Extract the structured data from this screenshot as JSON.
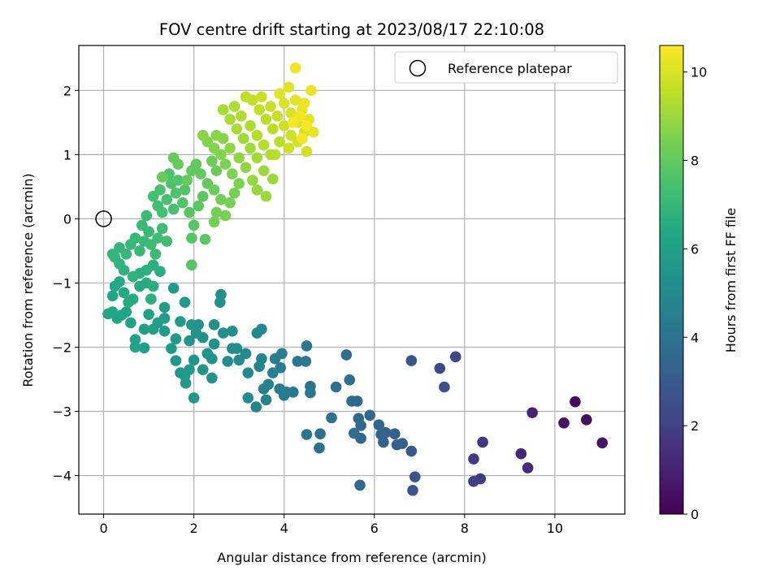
{
  "chart_data": {
    "type": "scatter",
    "title": "FOV centre drift starting at 2023/08/17 22:10:08",
    "xlabel": "Angular distance from reference (arcmin)",
    "ylabel": "Rotation from reference (arcmin)",
    "xlim": [
      -0.55,
      11.55
    ],
    "ylim": [
      -4.6,
      2.7
    ],
    "xticks": [
      0,
      2,
      4,
      6,
      8,
      10
    ],
    "yticks": [
      -4,
      -3,
      -2,
      -1,
      0,
      1,
      2
    ],
    "grid": true,
    "legend": {
      "placement": "top-right",
      "entries": [
        "Reference platepar"
      ]
    },
    "reference_point": {
      "x": 0,
      "y": 0,
      "label": "Reference platepar"
    },
    "colorbar": {
      "label": "Hours from first FF file",
      "range": [
        0,
        10.6
      ],
      "ticks": [
        0,
        2,
        4,
        6,
        8,
        10
      ],
      "colormap": "viridis"
    },
    "points": [
      {
        "x": 10.45,
        "y": -2.85,
        "c": 0.3
      },
      {
        "x": 10.7,
        "y": -3.13,
        "c": 0.4
      },
      {
        "x": 10.2,
        "y": -3.18,
        "c": 0.5
      },
      {
        "x": 11.05,
        "y": -3.49,
        "c": 0.6
      },
      {
        "x": 9.5,
        "y": -3.02,
        "c": 1.0
      },
      {
        "x": 9.25,
        "y": -3.66,
        "c": 1.2
      },
      {
        "x": 9.4,
        "y": -3.88,
        "c": 1.3
      },
      {
        "x": 8.4,
        "y": -3.48,
        "c": 1.7
      },
      {
        "x": 8.2,
        "y": -3.74,
        "c": 1.8
      },
      {
        "x": 8.35,
        "y": -4.05,
        "c": 1.9
      },
      {
        "x": 8.2,
        "y": -4.09,
        "c": 2.0
      },
      {
        "x": 7.8,
        "y": -2.15,
        "c": 2.2
      },
      {
        "x": 7.45,
        "y": -2.33,
        "c": 2.3
      },
      {
        "x": 7.55,
        "y": -2.62,
        "c": 2.5
      },
      {
        "x": 6.9,
        "y": -4.02,
        "c": 2.7
      },
      {
        "x": 6.85,
        "y": -4.23,
        "c": 2.8
      },
      {
        "x": 6.82,
        "y": -2.21,
        "c": 2.8
      },
      {
        "x": 6.82,
        "y": -3.62,
        "c": 3.0
      },
      {
        "x": 6.62,
        "y": -3.5,
        "c": 3.1
      },
      {
        "x": 6.5,
        "y": -3.52,
        "c": 3.2
      },
      {
        "x": 6.45,
        "y": -3.35,
        "c": 3.2
      },
      {
        "x": 6.25,
        "y": -3.33,
        "c": 3.3
      },
      {
        "x": 6.2,
        "y": -3.48,
        "c": 3.3
      },
      {
        "x": 6.15,
        "y": -3.36,
        "c": 3.4
      },
      {
        "x": 6.1,
        "y": -3.21,
        "c": 3.4
      },
      {
        "x": 5.9,
        "y": -3.06,
        "c": 3.5
      },
      {
        "x": 5.7,
        "y": -3.42,
        "c": 3.5
      },
      {
        "x": 5.7,
        "y": -3.22,
        "c": 3.6
      },
      {
        "x": 5.65,
        "y": -3.11,
        "c": 3.6
      },
      {
        "x": 5.68,
        "y": -4.15,
        "c": 3.6
      },
      {
        "x": 5.62,
        "y": -2.84,
        "c": 3.7
      },
      {
        "x": 5.5,
        "y": -2.84,
        "c": 3.7
      },
      {
        "x": 5.45,
        "y": -2.51,
        "c": 3.8
      },
      {
        "x": 5.38,
        "y": -2.12,
        "c": 3.8
      },
      {
        "x": 5.55,
        "y": -3.34,
        "c": 3.8
      },
      {
        "x": 5.05,
        "y": -3.1,
        "c": 3.9
      },
      {
        "x": 5.15,
        "y": -2.62,
        "c": 3.9
      },
      {
        "x": 4.8,
        "y": -3.35,
        "c": 4.0
      },
      {
        "x": 4.78,
        "y": -3.57,
        "c": 4.0
      },
      {
        "x": 4.5,
        "y": -3.36,
        "c": 4.1
      },
      {
        "x": 4.58,
        "y": -2.71,
        "c": 4.1
      },
      {
        "x": 4.58,
        "y": -2.61,
        "c": 4.1
      },
      {
        "x": 4.5,
        "y": -1.98,
        "c": 4.2
      },
      {
        "x": 4.48,
        "y": -2.22,
        "c": 4.2
      },
      {
        "x": 4.3,
        "y": -2.22,
        "c": 4.3
      },
      {
        "x": 4.2,
        "y": -2.7,
        "c": 4.3
      },
      {
        "x": 4.05,
        "y": -2.7,
        "c": 4.4
      },
      {
        "x": 4.0,
        "y": -2.75,
        "c": 4.4
      },
      {
        "x": 3.9,
        "y": -2.65,
        "c": 4.4
      },
      {
        "x": 3.95,
        "y": -2.1,
        "c": 4.5
      },
      {
        "x": 3.92,
        "y": -2.32,
        "c": 4.5
      },
      {
        "x": 3.8,
        "y": -2.18,
        "c": 4.5
      },
      {
        "x": 3.75,
        "y": -2.4,
        "c": 4.6
      },
      {
        "x": 3.65,
        "y": -2.58,
        "c": 4.6
      },
      {
        "x": 3.55,
        "y": -2.65,
        "c": 4.6
      },
      {
        "x": 3.6,
        "y": -2.82,
        "c": 4.7
      },
      {
        "x": 3.38,
        "y": -2.93,
        "c": 4.7
      },
      {
        "x": 3.5,
        "y": -2.18,
        "c": 4.8
      },
      {
        "x": 3.45,
        "y": -2.3,
        "c": 4.8
      },
      {
        "x": 3.5,
        "y": -1.72,
        "c": 4.9
      },
      {
        "x": 3.4,
        "y": -1.78,
        "c": 4.9
      },
      {
        "x": 3.2,
        "y": -2.79,
        "c": 5.0
      },
      {
        "x": 3.2,
        "y": -2.4,
        "c": 5.0
      },
      {
        "x": 3.15,
        "y": -2.1,
        "c": 5.0
      },
      {
        "x": 3.0,
        "y": -2.2,
        "c": 5.0
      },
      {
        "x": 2.95,
        "y": -2.02,
        "c": 5.1
      },
      {
        "x": 2.85,
        "y": -2.02,
        "c": 5.1
      },
      {
        "x": 2.75,
        "y": -2.22,
        "c": 5.1
      },
      {
        "x": 2.85,
        "y": -1.75,
        "c": 5.2
      },
      {
        "x": 2.65,
        "y": -1.78,
        "c": 5.2
      },
      {
        "x": 2.6,
        "y": -1.18,
        "c": 5.2
      },
      {
        "x": 2.58,
        "y": -1.3,
        "c": 5.3
      },
      {
        "x": 2.45,
        "y": -1.65,
        "c": 5.3
      },
      {
        "x": 2.45,
        "y": -1.95,
        "c": 5.3
      },
      {
        "x": 2.4,
        "y": -2.18,
        "c": 5.4
      },
      {
        "x": 2.3,
        "y": -2.1,
        "c": 5.4
      },
      {
        "x": 2.2,
        "y": -1.85,
        "c": 5.4
      },
      {
        "x": 2.1,
        "y": -1.65,
        "c": 5.4
      },
      {
        "x": 2.05,
        "y": -1.78,
        "c": 5.5
      },
      {
        "x": 1.95,
        "y": -1.65,
        "c": 5.5
      },
      {
        "x": 1.9,
        "y": -1.9,
        "c": 5.5
      },
      {
        "x": 2.0,
        "y": -2.2,
        "c": 5.5
      },
      {
        "x": 1.9,
        "y": -2.35,
        "c": 5.6
      },
      {
        "x": 1.8,
        "y": -2.45,
        "c": 5.6
      },
      {
        "x": 1.7,
        "y": -2.4,
        "c": 5.6
      },
      {
        "x": 1.6,
        "y": -2.21,
        "c": 5.6
      },
      {
        "x": 1.5,
        "y": -2.02,
        "c": 5.7
      },
      {
        "x": 1.6,
        "y": -1.87,
        "c": 5.7
      },
      {
        "x": 1.7,
        "y": -1.6,
        "c": 5.7
      },
      {
        "x": 1.8,
        "y": -1.3,
        "c": 5.7
      },
      {
        "x": 2.0,
        "y": -2.79,
        "c": 5.6
      },
      {
        "x": 1.82,
        "y": -2.56,
        "c": 5.6
      },
      {
        "x": 2.2,
        "y": -2.35,
        "c": 5.5
      },
      {
        "x": 2.4,
        "y": -2.48,
        "c": 5.4
      },
      {
        "x": 1.55,
        "y": -1.08,
        "c": 5.8
      },
      {
        "x": 1.35,
        "y": -1.75,
        "c": 5.8
      },
      {
        "x": 1.35,
        "y": -1.55,
        "c": 5.8
      },
      {
        "x": 1.35,
        "y": -1.38,
        "c": 5.9
      },
      {
        "x": 1.2,
        "y": -1.62,
        "c": 5.9
      },
      {
        "x": 1.1,
        "y": -1.72,
        "c": 5.9
      },
      {
        "x": 1.0,
        "y": -1.49,
        "c": 6.0
      },
      {
        "x": 0.9,
        "y": -1.72,
        "c": 6.0
      },
      {
        "x": 0.9,
        "y": -2.01,
        "c": 6.0
      },
      {
        "x": 0.7,
        "y": -1.88,
        "c": 6.1
      },
      {
        "x": 0.7,
        "y": -2.0,
        "c": 6.1
      },
      {
        "x": 0.6,
        "y": -1.62,
        "c": 6.1
      },
      {
        "x": 0.5,
        "y": -1.45,
        "c": 6.2
      },
      {
        "x": 0.4,
        "y": -1.5,
        "c": 6.2
      },
      {
        "x": 0.3,
        "y": -1.55,
        "c": 6.2
      },
      {
        "x": 0.2,
        "y": -1.45,
        "c": 6.3
      },
      {
        "x": 0.1,
        "y": -1.48,
        "c": 6.3
      },
      {
        "x": 0.2,
        "y": -1.2,
        "c": 6.3
      },
      {
        "x": 0.25,
        "y": -1.05,
        "c": 6.4
      },
      {
        "x": 0.35,
        "y": -0.98,
        "c": 6.4
      },
      {
        "x": 0.45,
        "y": -1.15,
        "c": 6.4
      },
      {
        "x": 0.55,
        "y": -1.3,
        "c": 6.5
      },
      {
        "x": 0.65,
        "y": -1.25,
        "c": 6.5
      },
      {
        "x": 0.8,
        "y": -1.05,
        "c": 6.5
      },
      {
        "x": 0.95,
        "y": -1.0,
        "c": 6.5
      },
      {
        "x": 1.05,
        "y": -1.25,
        "c": 6.6
      },
      {
        "x": 1.1,
        "y": -1.05,
        "c": 6.6
      },
      {
        "x": 1.25,
        "y": -0.82,
        "c": 6.6
      },
      {
        "x": 1.1,
        "y": -0.72,
        "c": 6.7
      },
      {
        "x": 0.95,
        "y": -0.8,
        "c": 6.7
      },
      {
        "x": 0.8,
        "y": -0.85,
        "c": 6.7
      },
      {
        "x": 0.65,
        "y": -0.9,
        "c": 6.8
      },
      {
        "x": 0.45,
        "y": -0.8,
        "c": 6.8
      },
      {
        "x": 0.35,
        "y": -0.7,
        "c": 6.8
      },
      {
        "x": 0.25,
        "y": -0.6,
        "c": 6.9
      },
      {
        "x": 0.2,
        "y": -0.55,
        "c": 6.9
      },
      {
        "x": 0.35,
        "y": -0.45,
        "c": 6.9
      },
      {
        "x": 0.5,
        "y": -0.55,
        "c": 7.0
      },
      {
        "x": 0.6,
        "y": -0.4,
        "c": 7.0
      },
      {
        "x": 0.7,
        "y": -0.3,
        "c": 7.0
      },
      {
        "x": 0.8,
        "y": -0.5,
        "c": 7.0
      },
      {
        "x": 0.9,
        "y": -0.35,
        "c": 7.1
      },
      {
        "x": 1.0,
        "y": -0.2,
        "c": 7.1
      },
      {
        "x": 0.85,
        "y": -0.1,
        "c": 7.1
      },
      {
        "x": 0.95,
        "y": 0.05,
        "c": 7.2
      },
      {
        "x": 1.05,
        "y": -0.4,
        "c": 7.2
      },
      {
        "x": 1.15,
        "y": -0.55,
        "c": 7.2
      },
      {
        "x": 1.2,
        "y": -0.3,
        "c": 7.3
      },
      {
        "x": 1.3,
        "y": -0.15,
        "c": 7.3
      },
      {
        "x": 1.4,
        "y": -0.35,
        "c": 7.3
      },
      {
        "x": 1.3,
        "y": 0.1,
        "c": 7.4
      },
      {
        "x": 1.2,
        "y": 0.2,
        "c": 7.4
      },
      {
        "x": 1.1,
        "y": 0.35,
        "c": 7.4
      },
      {
        "x": 1.25,
        "y": 0.45,
        "c": 7.5
      },
      {
        "x": 1.4,
        "y": 0.3,
        "c": 7.5
      },
      {
        "x": 1.55,
        "y": 0.15,
        "c": 7.5
      },
      {
        "x": 1.6,
        "y": 0.4,
        "c": 7.6
      },
      {
        "x": 1.5,
        "y": 0.55,
        "c": 7.6
      },
      {
        "x": 1.45,
        "y": 0.7,
        "c": 7.6
      },
      {
        "x": 1.65,
        "y": 0.6,
        "c": 7.7
      },
      {
        "x": 1.8,
        "y": 0.45,
        "c": 7.7
      },
      {
        "x": 1.75,
        "y": 0.25,
        "c": 7.7
      },
      {
        "x": 1.9,
        "y": 0.1,
        "c": 7.8
      },
      {
        "x": 2.0,
        "y": -0.1,
        "c": 7.8
      },
      {
        "x": 1.95,
        "y": -0.3,
        "c": 7.8
      },
      {
        "x": 2.25,
        "y": -0.32,
        "c": 7.9
      },
      {
        "x": 1.95,
        "y": -0.72,
        "c": 7.8
      },
      {
        "x": 2.1,
        "y": 0.2,
        "c": 7.9
      },
      {
        "x": 2.2,
        "y": 0.35,
        "c": 7.9
      },
      {
        "x": 2.3,
        "y": 0.55,
        "c": 8.0
      },
      {
        "x": 2.15,
        "y": 0.7,
        "c": 8.0
      },
      {
        "x": 2.05,
        "y": 0.85,
        "c": 8.0
      },
      {
        "x": 1.95,
        "y": 0.75,
        "c": 8.0
      },
      {
        "x": 1.85,
        "y": 0.6,
        "c": 8.1
      },
      {
        "x": 1.65,
        "y": 0.85,
        "c": 8.1
      },
      {
        "x": 1.55,
        "y": 0.95,
        "c": 8.1
      },
      {
        "x": 1.3,
        "y": 0.65,
        "c": 8.1
      },
      {
        "x": 2.4,
        "y": 0.9,
        "c": 8.2
      },
      {
        "x": 2.5,
        "y": 0.75,
        "c": 8.2
      },
      {
        "x": 2.45,
        "y": 0.45,
        "c": 8.2
      },
      {
        "x": 2.6,
        "y": 0.3,
        "c": 8.3
      },
      {
        "x": 2.5,
        "y": 0.1,
        "c": 8.3
      },
      {
        "x": 2.45,
        "y": -0.05,
        "c": 8.3
      },
      {
        "x": 2.7,
        "y": 0.05,
        "c": 8.4
      },
      {
        "x": 2.8,
        "y": 0.25,
        "c": 8.4
      },
      {
        "x": 2.9,
        "y": 0.4,
        "c": 8.4
      },
      {
        "x": 3.0,
        "y": 0.55,
        "c": 8.5
      },
      {
        "x": 2.85,
        "y": 0.7,
        "c": 8.5
      },
      {
        "x": 2.7,
        "y": 0.85,
        "c": 8.5
      },
      {
        "x": 2.6,
        "y": 1.0,
        "c": 8.6
      },
      {
        "x": 2.45,
        "y": 1.1,
        "c": 8.6
      },
      {
        "x": 2.3,
        "y": 1.2,
        "c": 8.6
      },
      {
        "x": 2.2,
        "y": 1.3,
        "c": 8.7
      },
      {
        "x": 2.5,
        "y": 1.3,
        "c": 8.7
      },
      {
        "x": 2.65,
        "y": 1.25,
        "c": 8.7
      },
      {
        "x": 2.8,
        "y": 1.1,
        "c": 8.8
      },
      {
        "x": 3.0,
        "y": 0.95,
        "c": 8.8
      },
      {
        "x": 3.15,
        "y": 0.8,
        "c": 8.8
      },
      {
        "x": 3.3,
        "y": 0.6,
        "c": 8.9
      },
      {
        "x": 3.4,
        "y": 0.45,
        "c": 8.9
      },
      {
        "x": 3.6,
        "y": 0.35,
        "c": 9.0
      },
      {
        "x": 3.55,
        "y": 0.75,
        "c": 9.0
      },
      {
        "x": 3.75,
        "y": 0.62,
        "c": 9.0
      },
      {
        "x": 3.4,
        "y": 0.95,
        "c": 9.1
      },
      {
        "x": 3.25,
        "y": 1.1,
        "c": 9.1
      },
      {
        "x": 3.1,
        "y": 1.25,
        "c": 9.1
      },
      {
        "x": 2.95,
        "y": 1.4,
        "c": 9.2
      },
      {
        "x": 2.8,
        "y": 1.55,
        "c": 9.2
      },
      {
        "x": 2.65,
        "y": 1.7,
        "c": 9.2
      },
      {
        "x": 2.9,
        "y": 1.75,
        "c": 9.3
      },
      {
        "x": 3.05,
        "y": 1.6,
        "c": 9.3
      },
      {
        "x": 3.25,
        "y": 1.45,
        "c": 9.3
      },
      {
        "x": 3.4,
        "y": 1.3,
        "c": 9.4
      },
      {
        "x": 3.55,
        "y": 1.15,
        "c": 9.4
      },
      {
        "x": 3.7,
        "y": 1.0,
        "c": 9.4
      },
      {
        "x": 3.9,
        "y": 1.2,
        "c": 9.5
      },
      {
        "x": 3.75,
        "y": 1.4,
        "c": 9.5
      },
      {
        "x": 3.6,
        "y": 1.55,
        "c": 9.5
      },
      {
        "x": 3.45,
        "y": 1.7,
        "c": 9.6
      },
      {
        "x": 3.3,
        "y": 1.85,
        "c": 9.6
      },
      {
        "x": 3.15,
        "y": 1.9,
        "c": 9.6
      },
      {
        "x": 3.5,
        "y": 1.9,
        "c": 9.7
      },
      {
        "x": 3.7,
        "y": 1.75,
        "c": 9.7
      },
      {
        "x": 3.85,
        "y": 1.6,
        "c": 9.7
      },
      {
        "x": 4.0,
        "y": 1.45,
        "c": 9.8
      },
      {
        "x": 4.15,
        "y": 1.3,
        "c": 9.8
      },
      {
        "x": 4.1,
        "y": 1.1,
        "c": 9.8
      },
      {
        "x": 4.3,
        "y": 1.2,
        "c": 9.9
      },
      {
        "x": 4.5,
        "y": 1.05,
        "c": 9.9
      },
      {
        "x": 4.45,
        "y": 1.35,
        "c": 9.9
      },
      {
        "x": 4.3,
        "y": 1.5,
        "c": 10.0
      },
      {
        "x": 4.15,
        "y": 1.65,
        "c": 10.0
      },
      {
        "x": 4.0,
        "y": 1.8,
        "c": 10.0
      },
      {
        "x": 3.9,
        "y": 1.95,
        "c": 10.1
      },
      {
        "x": 4.1,
        "y": 2.05,
        "c": 10.1
      },
      {
        "x": 4.25,
        "y": 1.85,
        "c": 10.1
      },
      {
        "x": 4.4,
        "y": 1.7,
        "c": 10.2
      },
      {
        "x": 4.55,
        "y": 1.55,
        "c": 10.2
      },
      {
        "x": 4.65,
        "y": 1.35,
        "c": 10.2
      },
      {
        "x": 4.6,
        "y": 2.0,
        "c": 10.3
      },
      {
        "x": 4.45,
        "y": 1.8,
        "c": 10.3
      },
      {
        "x": 4.35,
        "y": 1.6,
        "c": 10.4
      },
      {
        "x": 4.25,
        "y": 2.35,
        "c": 10.4
      },
      {
        "x": 4.5,
        "y": 1.45,
        "c": 10.5
      },
      {
        "x": 4.4,
        "y": 1.25,
        "c": 10.5
      },
      {
        "x": 4.2,
        "y": 1.5,
        "c": 10.5
      },
      {
        "x": 3.8,
        "y": 1.0,
        "c": 9.5
      }
    ]
  }
}
